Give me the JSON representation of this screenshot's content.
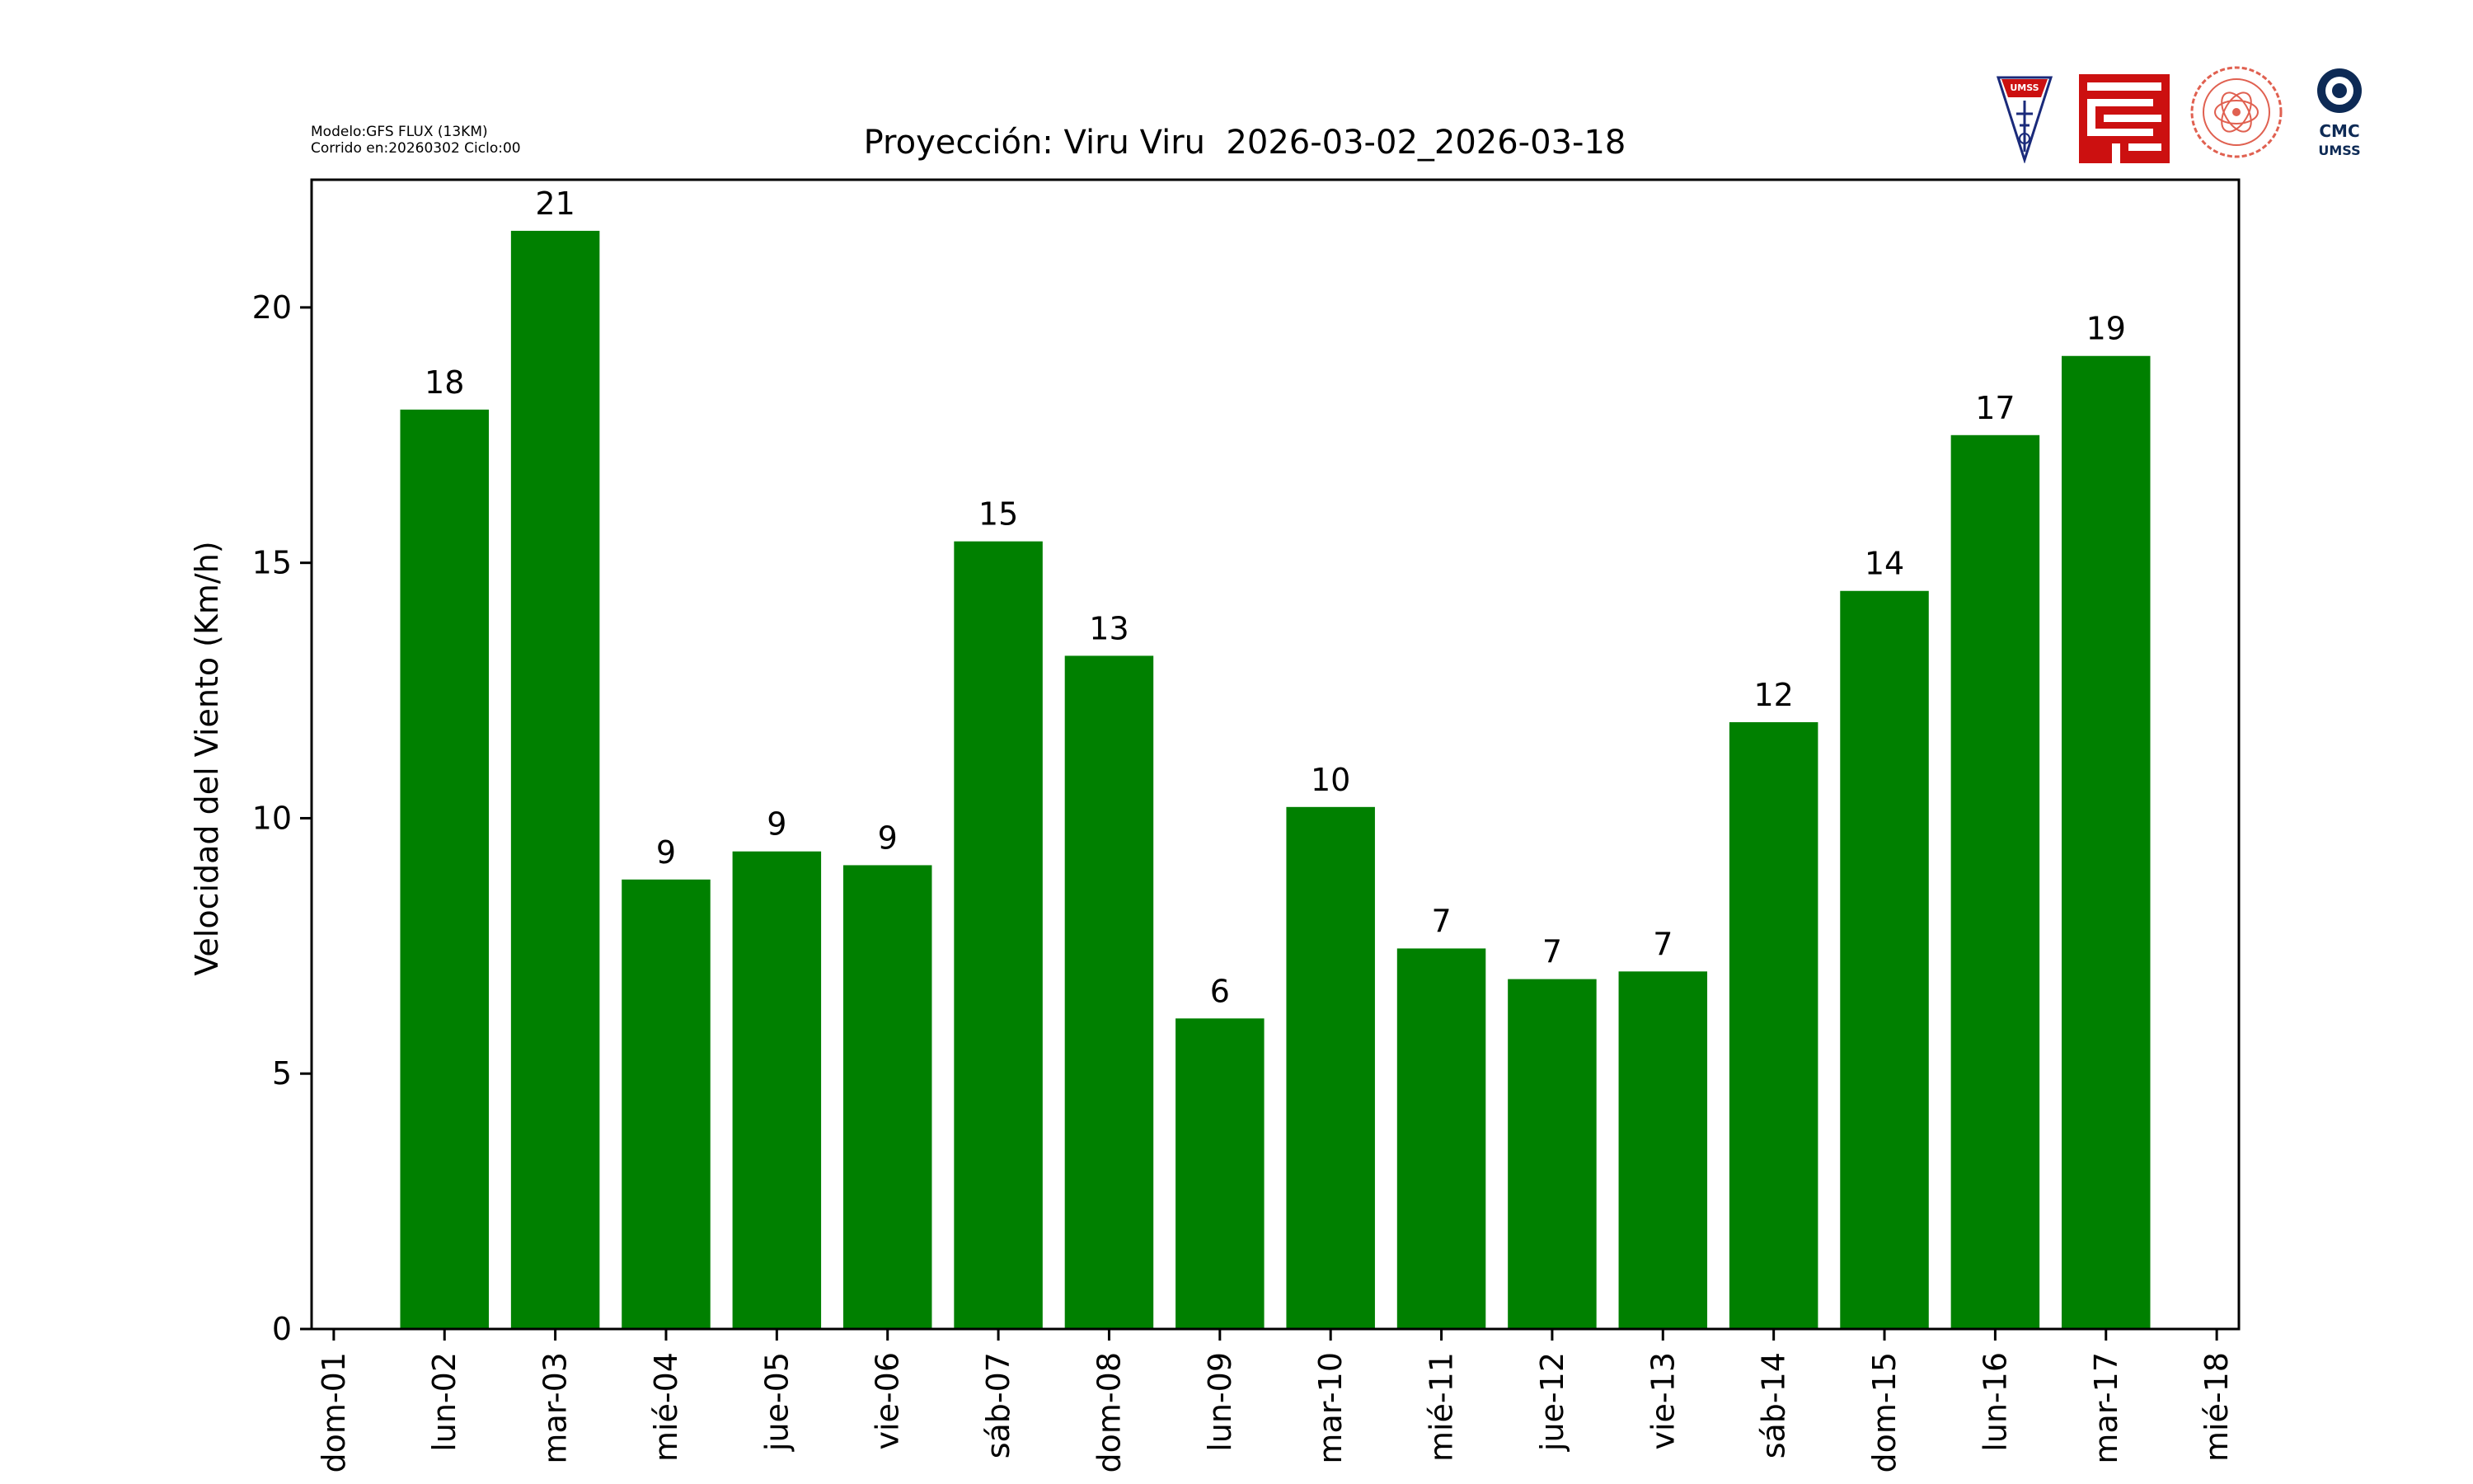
{
  "meta": {
    "model_line": "Modelo:GFS FLUX (13KM)",
    "run_line": "Corrido en:20260302 Ciclo:00"
  },
  "logos": [
    {
      "name": "umss-shield-logo",
      "text": "UMSS"
    },
    {
      "name": "fcyt-logo",
      "text": ""
    },
    {
      "name": "departamento-de-fisica-seal-logo",
      "text": ""
    },
    {
      "name": "cmc-umss-logo",
      "text": "CMC UMSS"
    }
  ],
  "colors": {
    "bar": "#008000",
    "logo_red": "#cc1010",
    "logo_blue": "#1a2a7a",
    "seal_red": "#e06050",
    "cmc_navy": "#0d2a55"
  },
  "chart_data": {
    "type": "bar",
    "title": "Proyección: Viru Viru  2026-03-02_2026-03-18",
    "xlabel": "",
    "ylabel": "Velocidad del Viento (Km/h)",
    "ylim": [
      0,
      22.5
    ],
    "xlim": [
      -0.2,
      17.2
    ],
    "yticks": [
      0,
      5,
      10,
      15,
      20
    ],
    "tick_labels": [
      "dom-01",
      "lun-02",
      "mar-03",
      "mié-04",
      "jue-05",
      "vie-06",
      "sáb-07",
      "dom-08",
      "lun-09",
      "mar-10",
      "mié-11",
      "jue-12",
      "vie-13",
      "sáb-14",
      "dom-15",
      "lun-16",
      "mar-17",
      "mié-18"
    ],
    "bars": [
      {
        "pos": 1,
        "value": 18.0,
        "label": "18"
      },
      {
        "pos": 2,
        "value": 21.5,
        "label": "21"
      },
      {
        "pos": 3,
        "value": 8.8,
        "label": "9"
      },
      {
        "pos": 4,
        "value": 9.35,
        "label": "9"
      },
      {
        "pos": 5,
        "value": 9.08,
        "label": "9"
      },
      {
        "pos": 6,
        "value": 15.42,
        "label": "15"
      },
      {
        "pos": 7,
        "value": 13.18,
        "label": "13"
      },
      {
        "pos": 8,
        "value": 6.08,
        "label": "6"
      },
      {
        "pos": 9,
        "value": 10.22,
        "label": "10"
      },
      {
        "pos": 10,
        "value": 7.45,
        "label": "7"
      },
      {
        "pos": 11,
        "value": 6.85,
        "label": "7"
      },
      {
        "pos": 12,
        "value": 7.0,
        "label": "7"
      },
      {
        "pos": 13,
        "value": 11.88,
        "label": "12"
      },
      {
        "pos": 14,
        "value": 14.45,
        "label": "14"
      },
      {
        "pos": 15,
        "value": 17.5,
        "label": "17"
      },
      {
        "pos": 16,
        "value": 19.05,
        "label": "19"
      }
    ],
    "bar_width": 0.8,
    "grid": false,
    "legend": "none"
  }
}
